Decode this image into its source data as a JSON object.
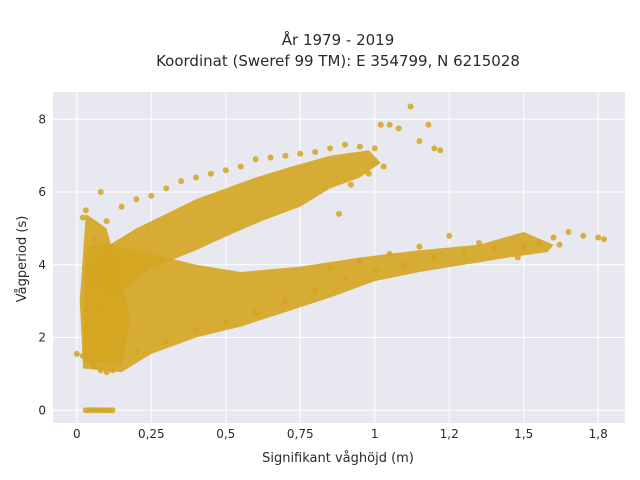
{
  "chart_data": {
    "type": "scatter",
    "title_line1": "År 1979 - 2019",
    "title_line2": "Koordinat (Sweref 99 TM): E 354799, N 6215028",
    "xlabel": "Signifikant våghöjd (m)",
    "ylabel": "Vågperiod (s)",
    "xlim": [
      -0.08,
      1.84
    ],
    "ylim": [
      -0.35,
      8.75
    ],
    "x_ticks": [
      {
        "value": 0,
        "label": "0"
      },
      {
        "value": 0.25,
        "label": "0,25"
      },
      {
        "value": 0.5,
        "label": "0,5"
      },
      {
        "value": 0.75,
        "label": "0,75"
      },
      {
        "value": 1,
        "label": "1"
      },
      {
        "value": 1.25,
        "label": "1,2"
      },
      {
        "value": 1.5,
        "label": "1,5"
      },
      {
        "value": 1.75,
        "label": "1,8"
      }
    ],
    "y_ticks": [
      {
        "value": 0,
        "label": "0"
      },
      {
        "value": 2,
        "label": "2"
      },
      {
        "value": 4,
        "label": "4"
      },
      {
        "value": 6,
        "label": "6"
      },
      {
        "value": 8,
        "label": "8"
      }
    ],
    "grid": true,
    "legend": "none",
    "colors": {
      "marker": "#D4A520",
      "plot_background": "#E8E8F0",
      "grid": "#FFFFFF"
    },
    "series": [
      {
        "values": [
          [
            0.03,
            0
          ],
          [
            0.04,
            0
          ],
          [
            0.05,
            0
          ],
          [
            0.06,
            0
          ],
          [
            0.07,
            0
          ],
          [
            0.08,
            0
          ],
          [
            0.09,
            0
          ],
          [
            0.1,
            0
          ],
          [
            0.11,
            0
          ],
          [
            0.12,
            0
          ],
          [
            0.0,
            1.55
          ],
          [
            0.02,
            1.5
          ],
          [
            0.03,
            1.6
          ],
          [
            0.05,
            1.3
          ],
          [
            0.06,
            1.2
          ],
          [
            0.08,
            1.1
          ],
          [
            0.1,
            1.05
          ],
          [
            0.12,
            1.1
          ],
          [
            0.02,
            5.3
          ],
          [
            0.03,
            5.5
          ],
          [
            0.08,
            6.0
          ],
          [
            0.06,
            4.7
          ],
          [
            0.04,
            3.5
          ],
          [
            0.07,
            2.8
          ],
          [
            0.1,
            5.2
          ],
          [
            0.15,
            5.6
          ],
          [
            0.2,
            5.8
          ],
          [
            0.25,
            5.9
          ],
          [
            0.3,
            6.1
          ],
          [
            0.35,
            6.3
          ],
          [
            0.4,
            6.4
          ],
          [
            0.45,
            6.5
          ],
          [
            0.5,
            6.6
          ],
          [
            0.55,
            6.7
          ],
          [
            0.6,
            6.9
          ],
          [
            0.65,
            6.95
          ],
          [
            0.7,
            7.0
          ],
          [
            0.75,
            7.05
          ],
          [
            0.8,
            7.1
          ],
          [
            0.85,
            7.2
          ],
          [
            0.9,
            7.3
          ],
          [
            0.95,
            7.25
          ],
          [
            1.0,
            7.2
          ],
          [
            1.02,
            7.85
          ],
          [
            1.05,
            7.85
          ],
          [
            1.08,
            7.75
          ],
          [
            1.12,
            8.35
          ],
          [
            1.15,
            7.4
          ],
          [
            1.2,
            7.2
          ],
          [
            1.22,
            7.15
          ],
          [
            1.18,
            7.85
          ],
          [
            1.03,
            6.7
          ],
          [
            0.98,
            6.5
          ],
          [
            0.92,
            6.2
          ],
          [
            0.88,
            5.4
          ],
          [
            0.2,
            1.6
          ],
          [
            0.3,
            1.9
          ],
          [
            0.4,
            2.2
          ],
          [
            0.5,
            2.4
          ],
          [
            0.6,
            2.7
          ],
          [
            0.7,
            3.0
          ],
          [
            0.8,
            3.3
          ],
          [
            0.9,
            3.6
          ],
          [
            1.0,
            3.85
          ],
          [
            1.1,
            4.0
          ],
          [
            1.2,
            4.2
          ],
          [
            1.3,
            4.35
          ],
          [
            1.4,
            4.45
          ],
          [
            1.5,
            4.5
          ],
          [
            1.55,
            4.6
          ],
          [
            1.6,
            4.75
          ],
          [
            1.65,
            4.9
          ],
          [
            1.7,
            4.8
          ],
          [
            1.75,
            4.75
          ],
          [
            1.77,
            4.7
          ],
          [
            1.62,
            4.55
          ],
          [
            1.48,
            4.2
          ],
          [
            1.35,
            4.6
          ],
          [
            1.25,
            4.8
          ],
          [
            1.15,
            4.5
          ],
          [
            1.05,
            4.3
          ],
          [
            0.95,
            4.1
          ],
          [
            0.85,
            3.9
          ]
        ]
      }
    ]
  }
}
